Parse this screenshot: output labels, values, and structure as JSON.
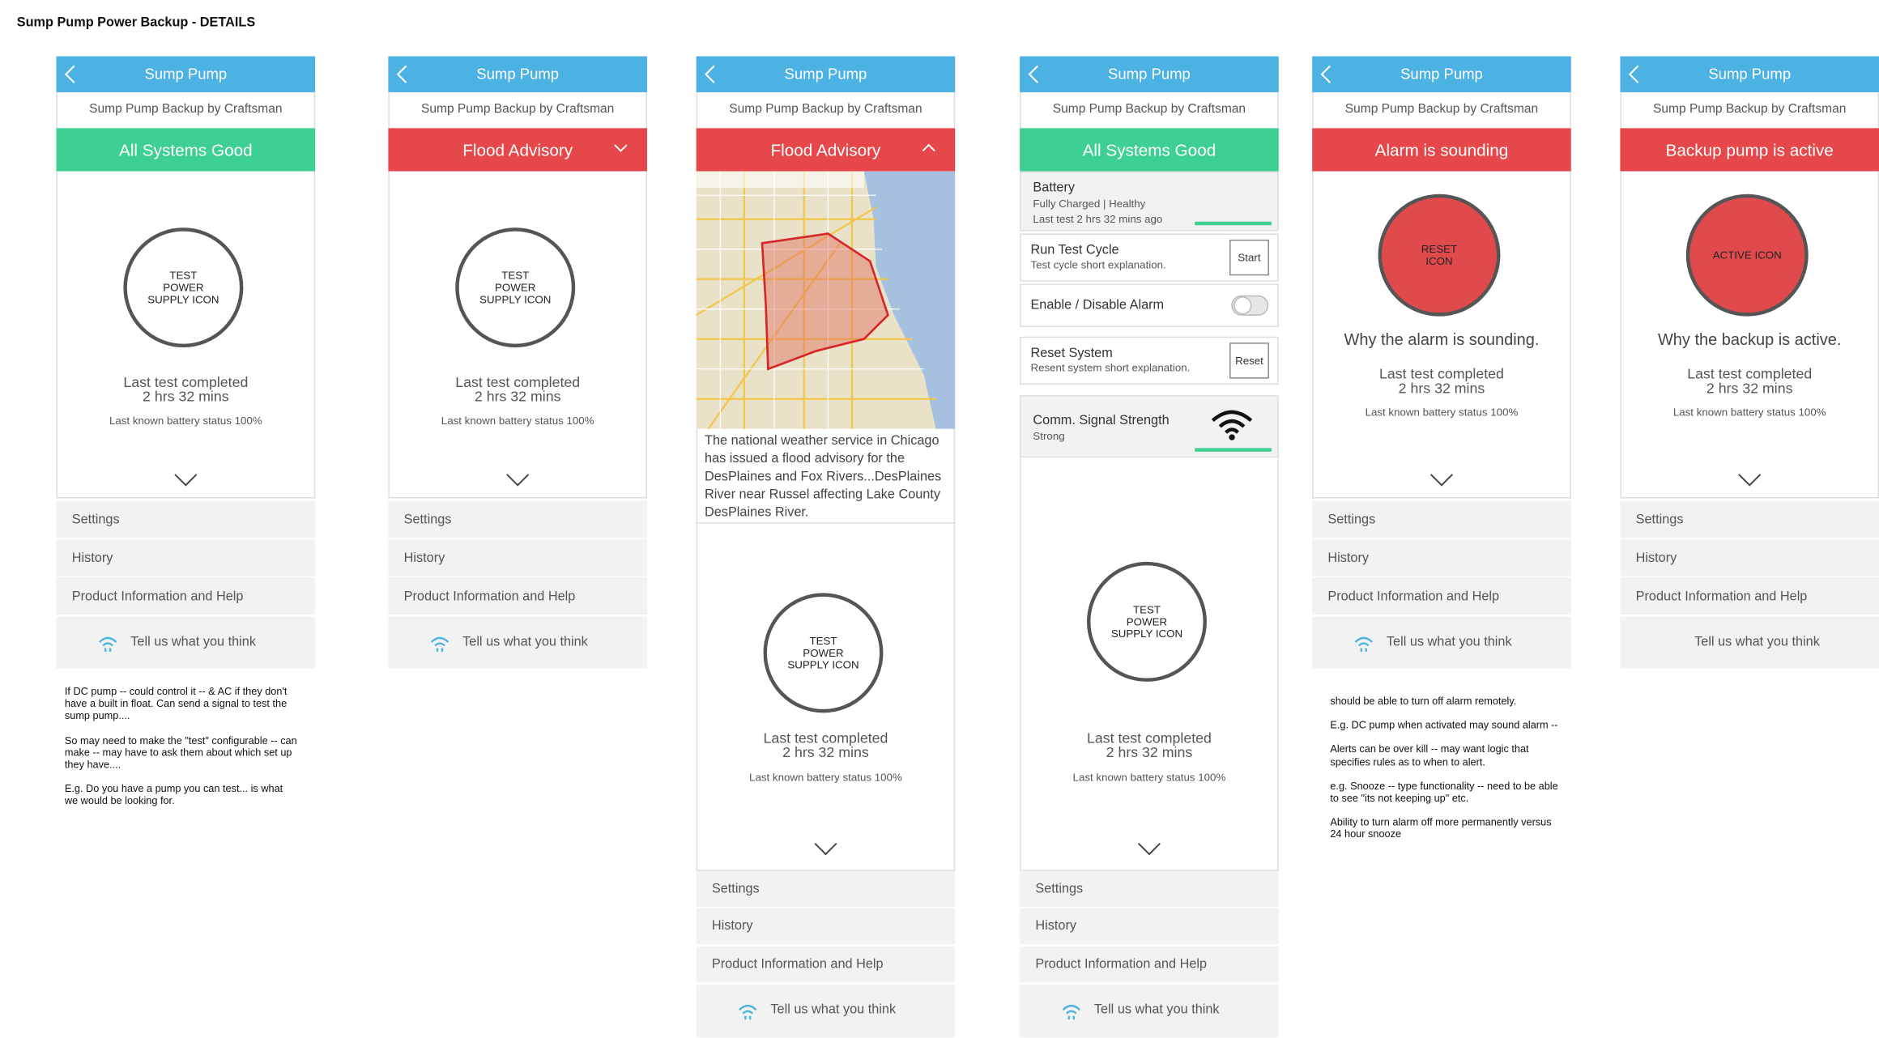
{
  "title": "Sump Pump Power Backup - DETAILS",
  "screens": [
    {
      "nav_title": "Sump Pump",
      "subtitle": "Sump Pump Backup by Craftsman",
      "status": {
        "text": "All Systems Good",
        "color": "#3ecf93"
      },
      "icon": {
        "lines": [
          "TEST",
          "POWER",
          "SUPPLY ICON"
        ]
      },
      "last_test": [
        "Last test completed",
        "2 hrs 32 mins"
      ],
      "battery": "Last known battery status 100%",
      "menu": [
        "Settings",
        "History",
        "Product Information and Help"
      ],
      "feedback": "Tell us what you think",
      "notes": [
        "If DC pump -- could control it -- & AC if they don't have a built in float. Can send a signal to test the sump pump....",
        "So may need to make the \"test\" configurable -- can make -- may have to ask them about which set up they have....",
        "E.g. Do you have a pump you can test... is what we would be looking for."
      ]
    },
    {
      "nav_title": "Sump Pump",
      "subtitle": "Sump Pump Backup by Craftsman",
      "status": {
        "text": "Flood Advisory",
        "color": "#e5474b"
      },
      "icon": {
        "lines": [
          "TEST",
          "POWER",
          "SUPPLY ICON"
        ]
      },
      "last_test": [
        "Last test completed",
        "2 hrs 32 mins"
      ],
      "battery": "Last known battery status 100%",
      "menu": [
        "Settings",
        "History",
        "Product Information and Help"
      ],
      "feedback": "Tell us what you think"
    },
    {
      "nav_title": "Sump Pump",
      "subtitle": "Sump Pump Backup by Craftsman",
      "status": {
        "text": "Flood Advisory",
        "color": "#e5474b"
      },
      "advisory": "The national weather service in Chicago has issued a flood advisory for the DesPlaines and Fox Rivers...DesPlaines River near Russel affecting Lake County DesPlaines River.",
      "icon": {
        "lines": [
          "TEST",
          "POWER",
          "SUPPLY ICON"
        ]
      },
      "last_test": [
        "Last test completed",
        "2 hrs 32 mins"
      ],
      "battery": "Last known battery status 100%",
      "menu": [
        "Settings",
        "History",
        "Product Information and Help"
      ],
      "feedback": "Tell us what you think"
    },
    {
      "nav_title": "Sump Pump",
      "subtitle": "Sump Pump Backup by Craftsman",
      "status": {
        "text": "All Systems Good",
        "color": "#3ecf93"
      },
      "controls": [
        {
          "title": "Battery",
          "detail": "Fully Charged | Healthy",
          "extra": "Last test 2 hrs 32 mins ago"
        },
        {
          "title": "Run Test Cycle",
          "detail": "Test cycle short explanation.",
          "button": "Start"
        },
        {
          "title": "Enable / Disable Alarm"
        },
        {
          "title": "Reset System",
          "detail": "Resent system short explanation.",
          "button": "Reset"
        },
        {
          "title": "Comm. Signal Strength",
          "detail": "Strong"
        }
      ],
      "icon": {
        "lines": [
          "TEST",
          "POWER",
          "SUPPLY ICON"
        ]
      },
      "last_test": [
        "Last test completed",
        "2 hrs 32 mins"
      ],
      "battery": "Last known battery status 100%",
      "menu": [
        "Settings",
        "History",
        "Product Information and Help"
      ],
      "feedback": "Tell us what you think"
    },
    {
      "nav_title": "Sump Pump",
      "subtitle": "Sump Pump Backup by Craftsman",
      "status": {
        "text": "Alarm is sounding",
        "color": "#e5474b"
      },
      "icon": {
        "lines": [
          "RESET",
          "ICON"
        ],
        "color": "#e04a4d"
      },
      "reason": "Why the alarm is sounding.",
      "last_test": [
        "Last test completed",
        "2 hrs 32 mins"
      ],
      "battery": "Last known battery status 100%",
      "menu": [
        "Settings",
        "History",
        "Product Information and Help"
      ],
      "feedback": "Tell us what you think",
      "notes": [
        "should be able to turn off alarm remotely.",
        "E.g. DC pump when activated may sound alarm --",
        "Alerts can be over kill -- may want logic that specifies rules as to when to alert.",
        "e.g. Snooze -- type functionality -- need to be able to see \"its not keeping up\" etc.",
        "Ability to turn alarm off more permanently versus 24 hour snooze"
      ]
    },
    {
      "nav_title": "Sump Pump",
      "subtitle": "Sump Pump Backup by Craftsman",
      "status": {
        "text": "Backup pump is active",
        "color": "#e5474b"
      },
      "icon": {
        "lines": [
          "ACTIVE ICON"
        ],
        "color": "#e04a4d"
      },
      "reason": "Why the backup is active.",
      "last_test": [
        "Last test completed",
        "2 hrs 32 mins"
      ],
      "battery": "Last known battery status 100%",
      "menu": [
        "Settings",
        "History",
        "Product Information and Help"
      ],
      "feedback": "Tell us what you think"
    }
  ]
}
